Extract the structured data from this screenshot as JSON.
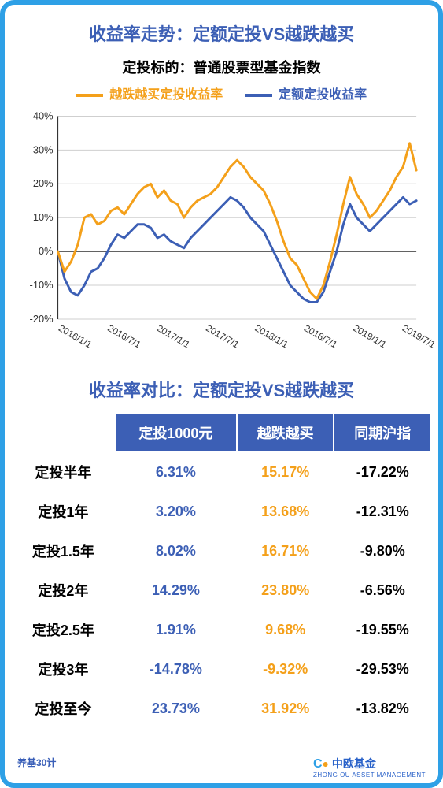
{
  "frame_border_color": "#2ea0e6",
  "chart": {
    "title": "收益率走势：定额定投VS越跌越买",
    "title_color": "#3c5fb5",
    "subtitle": "定投标的：普通股票型基金指数",
    "legend": {
      "orange_label": "越跌越买定投收益率",
      "orange_color": "#f4a01a",
      "blue_label": "定额定投收益率",
      "blue_color": "#3c5fb5"
    },
    "ylim": [
      -20,
      40
    ],
    "ytick_step": 10,
    "x_labels": [
      "2016/1/1",
      "2016/7/1",
      "2017/1/1",
      "2017/7/1",
      "2018/1/1",
      "2018/7/1",
      "2019/1/1",
      "2019/7/1"
    ],
    "grid_color": "#cfcfcf",
    "axis_color": "#333333",
    "background_color": "#ffffff",
    "line_width": 3,
    "series_orange": [
      0,
      -6,
      -3,
      2,
      10,
      11,
      8,
      9,
      12,
      13,
      11,
      14,
      17,
      19,
      20,
      16,
      18,
      15,
      14,
      10,
      13,
      15,
      16,
      17,
      19,
      22,
      25,
      27,
      25,
      22,
      20,
      18,
      14,
      9,
      3,
      -2,
      -4,
      -8,
      -12,
      -14,
      -10,
      -3,
      5,
      14,
      22,
      17,
      14,
      10,
      12,
      15,
      18,
      22,
      25,
      32,
      24
    ],
    "series_blue": [
      0,
      -8,
      -12,
      -13,
      -10,
      -6,
      -5,
      -2,
      2,
      5,
      4,
      6,
      8,
      8,
      7,
      4,
      5,
      3,
      2,
      1,
      4,
      6,
      8,
      10,
      12,
      14,
      16,
      15,
      13,
      10,
      8,
      6,
      2,
      -2,
      -6,
      -10,
      -12,
      -14,
      -15,
      -15,
      -12,
      -6,
      0,
      8,
      14,
      10,
      8,
      6,
      8,
      10,
      12,
      14,
      16,
      14,
      15
    ]
  },
  "table": {
    "title": "收益率对比：定额定投VS越跌越买",
    "title_color": "#3c5fb5",
    "header_bg": "#3c5fb5",
    "headers": [
      "",
      "定投1000元",
      "越跌越买",
      "同期沪指"
    ],
    "col_colors": [
      "#000000",
      "#3c5fb5",
      "#f4a01a",
      "#000000"
    ],
    "rows": [
      [
        "定投半年",
        "6.31%",
        "15.17%",
        "-17.22%"
      ],
      [
        "定投1年",
        "3.20%",
        "13.68%",
        "-12.31%"
      ],
      [
        "定投1.5年",
        "8.02%",
        "16.71%",
        "-9.80%"
      ],
      [
        "定投2年",
        "14.29%",
        "23.80%",
        "-6.56%"
      ],
      [
        "定投2.5年",
        "1.91%",
        "9.68%",
        "-19.55%"
      ],
      [
        "定投3年",
        "-14.78%",
        "-9.32%",
        "-29.53%"
      ],
      [
        "定投至今",
        "23.73%",
        "31.92%",
        "-13.82%"
      ]
    ]
  },
  "footer": {
    "left": "养基30计",
    "right_main": "中欧基金",
    "right_sub": "ZHONG OU ASSET MANAGEMENT"
  }
}
